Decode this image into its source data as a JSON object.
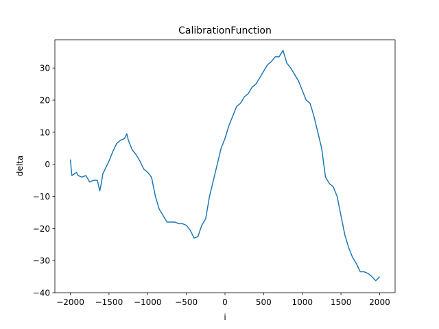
{
  "chart_data": {
    "type": "line",
    "title": "CalibrationFunction",
    "xlabel": "i",
    "ylabel": "delta",
    "x": [
      -2000,
      -1980,
      -1950,
      -1920,
      -1900,
      -1850,
      -1800,
      -1750,
      -1700,
      -1650,
      -1620,
      -1600,
      -1580,
      -1550,
      -1500,
      -1450,
      -1400,
      -1350,
      -1300,
      -1270,
      -1250,
      -1200,
      -1150,
      -1100,
      -1050,
      -1000,
      -950,
      -900,
      -850,
      -800,
      -750,
      -700,
      -650,
      -600,
      -550,
      -500,
      -450,
      -400,
      -350,
      -300,
      -250,
      -200,
      -150,
      -100,
      -50,
      0,
      50,
      100,
      150,
      200,
      250,
      300,
      350,
      400,
      450,
      500,
      550,
      600,
      650,
      700,
      750,
      800,
      850,
      900,
      950,
      1000,
      1050,
      1100,
      1150,
      1200,
      1250,
      1300,
      1350,
      1400,
      1450,
      1500,
      1550,
      1600,
      1650,
      1700,
      1750,
      1800,
      1850,
      1900,
      1950,
      2000
    ],
    "series": [
      {
        "name": "delta",
        "color": "#1f77b4",
        "values": [
          1.5,
          -3.5,
          -3,
          -2.5,
          -3.5,
          -4,
          -3.5,
          -5.5,
          -5,
          -5,
          -8.3,
          -6,
          -3,
          -1.5,
          1,
          4,
          6.5,
          7.5,
          8,
          9.5,
          7.5,
          4.5,
          3,
          1,
          -1.5,
          -2.5,
          -4,
          -10,
          -14,
          -16,
          -18,
          -18,
          -18,
          -18.5,
          -18.5,
          -19,
          -20.5,
          -23,
          -22.5,
          -19,
          -17,
          -10,
          -5,
          0,
          5,
          8,
          12,
          15,
          18,
          19,
          21,
          22,
          24,
          25,
          27,
          29,
          31,
          32,
          33.5,
          33.5,
          35.5,
          31.5,
          30,
          28,
          26,
          23,
          20,
          19,
          15,
          10,
          5,
          -4,
          -6,
          -7,
          -10,
          -16,
          -22,
          -26,
          -29,
          -31,
          -33.5,
          -33.5,
          -34,
          -35,
          -36.3,
          -35
        ]
      }
    ],
    "xlim": [
      -2200,
      2200
    ],
    "ylim": [
      -40,
      38.8
    ],
    "xticks": [
      {
        "value": -2000,
        "label": "−2000"
      },
      {
        "value": -1500,
        "label": "−1500"
      },
      {
        "value": -1000,
        "label": "−1000"
      },
      {
        "value": -500,
        "label": "−500"
      },
      0,
      500,
      1000,
      1500,
      2000
    ],
    "yticks": [
      {
        "value": -40,
        "label": "−40"
      },
      {
        "value": -30,
        "label": "−30"
      },
      {
        "value": -20,
        "label": "−20"
      },
      {
        "value": -10,
        "label": "−10"
      },
      0,
      10,
      20,
      30
    ],
    "grid": false
  }
}
